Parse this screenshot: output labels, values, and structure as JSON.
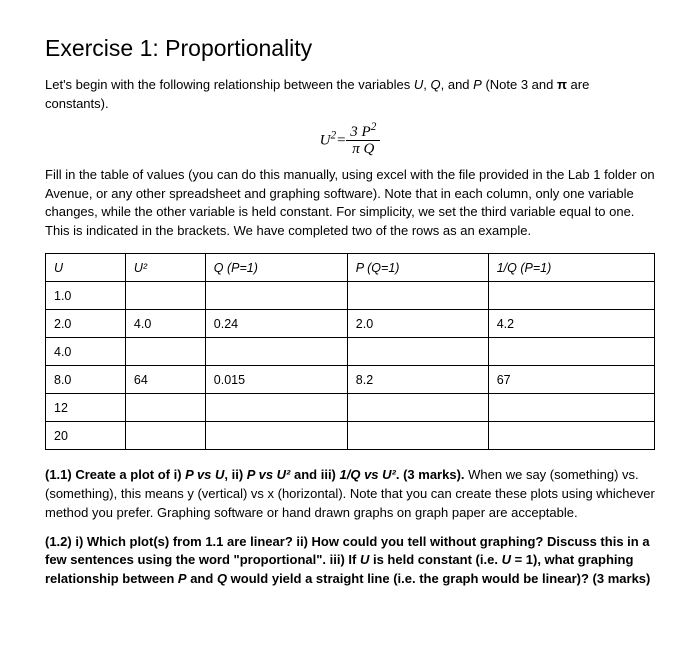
{
  "title": "Exercise 1: Proportionality",
  "intro1": "Let's begin with the following relationship between the variables U, Q, and P (Note 3 and π are constants).",
  "formula": {
    "lhs": "U",
    "lhs_sup": "2",
    "equals": "=",
    "num_coeff": "3",
    "num_var": "P",
    "num_sup": "2",
    "denom_a": "π",
    "denom_b": "Q"
  },
  "intro2": "Fill in the table of values (you can do this manually, using excel with the file provided in the Lab 1 folder on Avenue, or any other spreadsheet and graphing software). Note that in each column, only one variable changes, while the other variable is held constant. For simplicity, we set the third variable equal to one. This is indicated in the brackets. We have completed two of the rows as an example.",
  "table": {
    "headers": {
      "c0": "U",
      "c1": "U²",
      "c2": "Q (P=1)",
      "c3": "P (Q=1)",
      "c4": "1/Q (P=1)"
    },
    "rows": [
      {
        "c0": "1.0",
        "c1": "",
        "c2": "",
        "c3": "",
        "c4": ""
      },
      {
        "c0": "2.0",
        "c1": "4.0",
        "c2": "0.24",
        "c3": "2.0",
        "c4": "4.2"
      },
      {
        "c0": "4.0",
        "c1": "",
        "c2": "",
        "c3": "",
        "c4": ""
      },
      {
        "c0": "8.0",
        "c1": "64",
        "c2": "0.015",
        "c3": "8.2",
        "c4": "67"
      },
      {
        "c0": "12",
        "c1": "",
        "c2": "",
        "c3": "",
        "c4": ""
      },
      {
        "c0": "20",
        "c1": "",
        "c2": "",
        "c3": "",
        "c4": ""
      }
    ]
  },
  "q11": {
    "bold1": "(1.1) Create a plot of i) ",
    "b_pu": "P vs U",
    "mid1": ", ii) ",
    "b_pu2": "P vs U²",
    "mid2": " and iii) ",
    "b_1q": "1/Q vs U²",
    "mid3": ". (3 marks).",
    "rest": " When we say (something) vs. (something), this means y (vertical) vs x (horizontal). Note that you can create these plots using whichever method you prefer. Graphing software or hand drawn graphs on graph paper are acceptable."
  },
  "q12": "(1.2) i) Which plot(s) from 1.1 are linear? ii) How could you tell without graphing? Discuss this in a few sentences using the word \"proportional\". iii) If U is held constant (i.e. U = 1), what graphing relationship between P and Q would yield a straight line (i.e. the graph would be linear)? (3 marks)"
}
